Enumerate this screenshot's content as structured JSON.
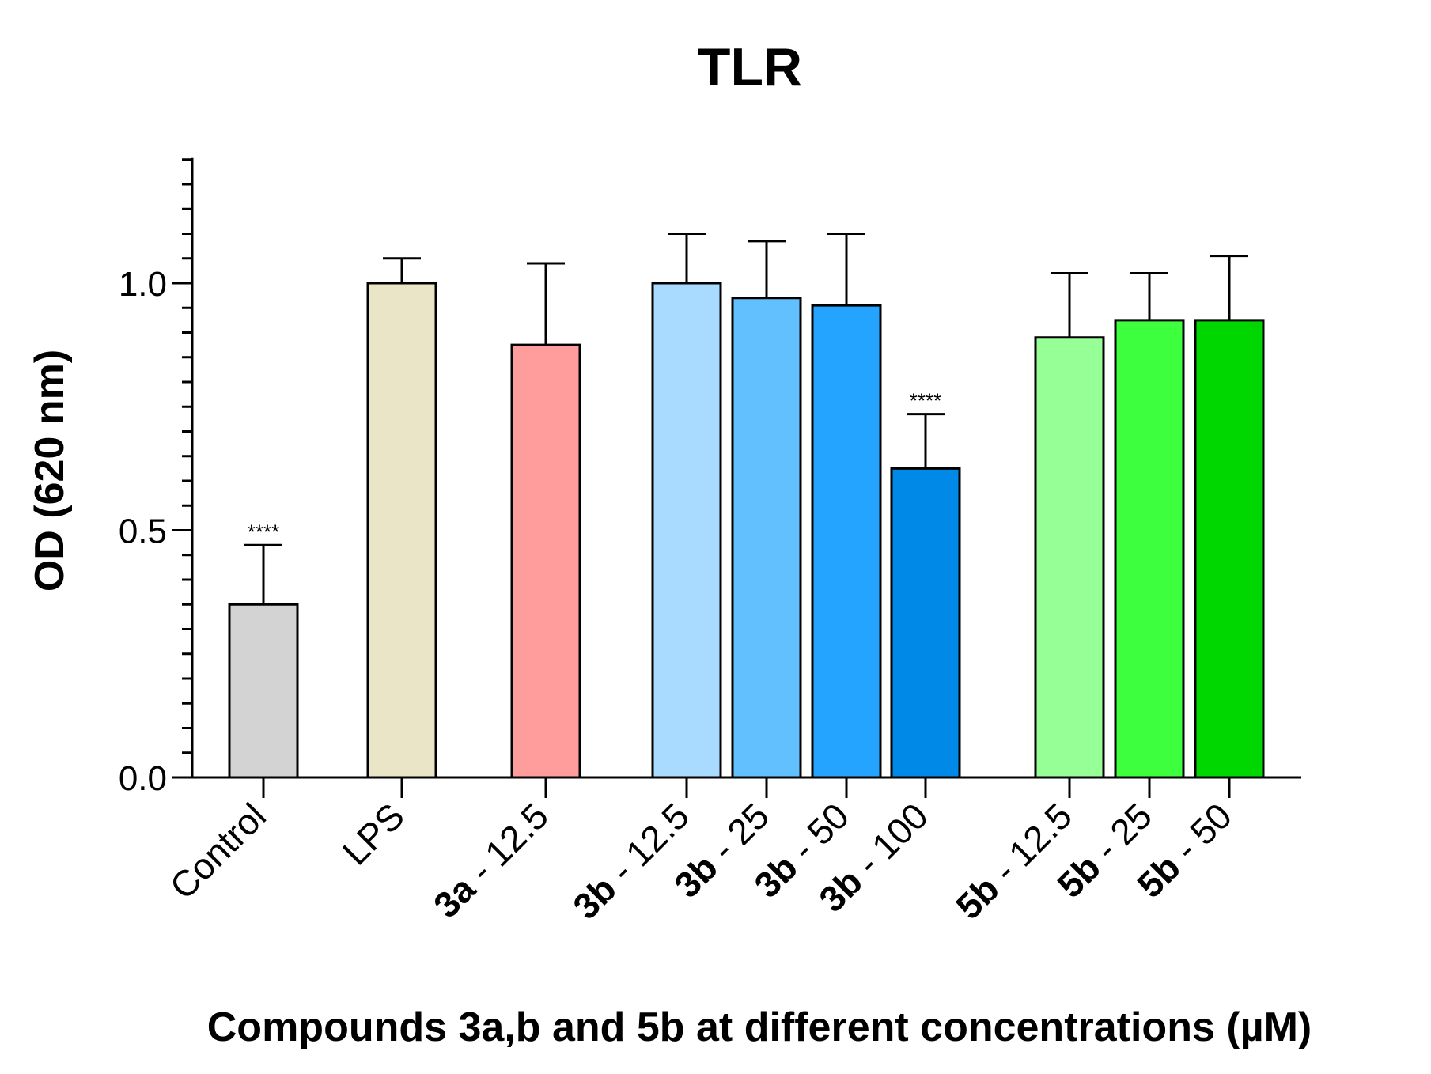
{
  "chart_data": {
    "type": "bar",
    "title": "TLR",
    "xlabel": "Compounds 3a,b and 5b at different concentrations (µM)",
    "ylabel": "OD (620 nm)",
    "ylim": [
      0,
      1.25
    ],
    "yticks": [
      0.0,
      0.5,
      1.0
    ],
    "ytick_labels": [
      "0.0",
      "0.5",
      "1.0"
    ],
    "minor_tick_step": 0.05,
    "categories": [
      {
        "prefix": "",
        "suffix": "Control",
        "value": 0.35,
        "error": 0.12,
        "color": "#d3d3d3",
        "annotation": "****"
      },
      {
        "prefix": "",
        "suffix": "LPS",
        "value": 1.0,
        "error": 0.05,
        "color": "#ebe5c8",
        "annotation": ""
      },
      {
        "prefix": "3a",
        "suffix": " - 12.5",
        "value": 0.875,
        "error": 0.165,
        "color": "#ff9c9c",
        "annotation": ""
      },
      {
        "prefix": "3b",
        "suffix": " - 12.5",
        "value": 1.0,
        "error": 0.1,
        "color": "#a8dbff",
        "annotation": ""
      },
      {
        "prefix": "3b",
        "suffix": " - 25",
        "value": 0.97,
        "error": 0.115,
        "color": "#62c0ff",
        "annotation": ""
      },
      {
        "prefix": "3b",
        "suffix": " - 50",
        "value": 0.955,
        "error": 0.145,
        "color": "#25a4ff",
        "annotation": ""
      },
      {
        "prefix": "3b",
        "suffix": " - 100",
        "value": 0.625,
        "error": 0.11,
        "color": "#0089e6",
        "annotation": "****"
      },
      {
        "prefix": "5b",
        "suffix": " - 12.5",
        "value": 0.89,
        "error": 0.13,
        "color": "#96ff96",
        "annotation": ""
      },
      {
        "prefix": "5b",
        "suffix": " - 25",
        "value": 0.925,
        "error": 0.095,
        "color": "#3dff3d",
        "annotation": ""
      },
      {
        "prefix": "5b",
        "suffix": " - 50",
        "value": 0.925,
        "error": 0.13,
        "color": "#00d600",
        "annotation": ""
      }
    ]
  }
}
